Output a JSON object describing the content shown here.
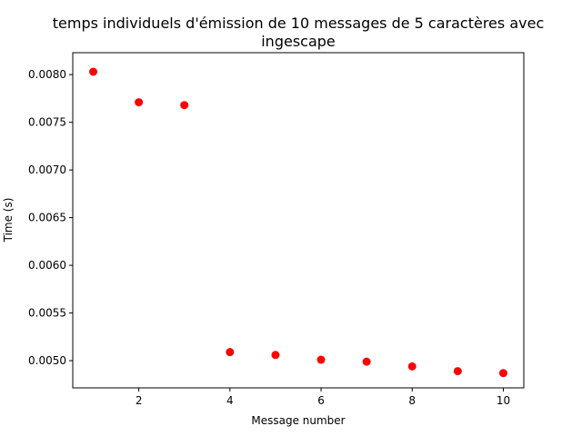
{
  "chart_data": {
    "type": "scatter",
    "title_lines": [
      "temps individuels d'émission de 10 messages de 5 caractères avec",
      "ingescape"
    ],
    "xlabel": "Message number",
    "ylabel": "Time (s)",
    "xlim": [
      0.55,
      10.45
    ],
    "ylim": [
      0.004715,
      0.00823
    ],
    "x_ticks": [
      2,
      4,
      6,
      8,
      10
    ],
    "x_tick_labels": [
      "2",
      "4",
      "6",
      "8",
      "10"
    ],
    "y_ticks": [
      0.005,
      0.0055,
      0.006,
      0.0065,
      0.007,
      0.0075,
      0.008
    ],
    "y_tick_labels": [
      "0.0050",
      "0.0055",
      "0.0060",
      "0.0065",
      "0.0070",
      "0.0075",
      "0.0080"
    ],
    "grid": false,
    "marker_color": "#ff0000",
    "x": [
      1,
      2,
      3,
      4,
      5,
      6,
      7,
      8,
      9,
      10
    ],
    "y": [
      0.00803,
      0.00771,
      0.00768,
      0.00509,
      0.00506,
      0.00501,
      0.00499,
      0.00494,
      0.00489,
      0.00487
    ]
  }
}
